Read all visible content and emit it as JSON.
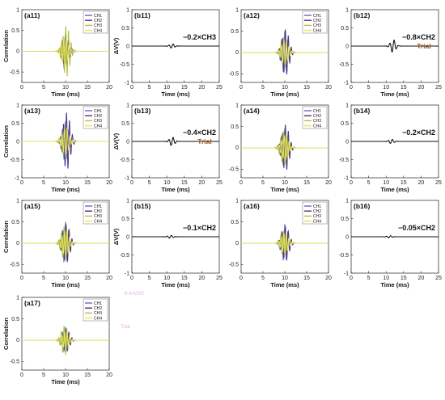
{
  "figure": {
    "legend_colors": {
      "CH1": "#5b6cc4",
      "CH2": "#4b2f7f",
      "CH3": "#b6bf3a",
      "CH4": "#e6e65a"
    },
    "faint_overlay": [
      "-0.4×CH2",
      "Trial"
    ]
  },
  "chart_data": [
    {
      "id": "a11",
      "type": "line",
      "label": "(a11)",
      "xlabel": "Time (ms)",
      "ylabel": "Correlation",
      "xlim": [
        0,
        20
      ],
      "ylim": [
        -0.75,
        1
      ],
      "xticks": [
        "0",
        "5",
        "10",
        "15",
        "20"
      ],
      "yticks": [
        "1",
        "0.5",
        "0",
        "-0.5"
      ],
      "legend": [
        "CH1",
        "CH2",
        "CH3",
        "CH4"
      ],
      "series": [
        {
          "name": "CH1",
          "center": 10,
          "amplitude": 0.45
        },
        {
          "name": "CH2",
          "center": 10,
          "amplitude": 0.35
        },
        {
          "name": "CH3",
          "center": 10.2,
          "amplitude": 0.62
        },
        {
          "name": "CH4",
          "center": 9.8,
          "amplitude": 0.35
        }
      ]
    },
    {
      "id": "b11",
      "type": "line",
      "label": "(b11)",
      "xlabel": "Time (ms)",
      "ylabel": "ΔV(V)",
      "xlim": [
        0,
        25
      ],
      "ylim": [
        -1,
        1
      ],
      "xticks": [
        "0",
        "5",
        "10",
        "15",
        "20",
        "25"
      ],
      "yticks": [
        "1",
        "0.5",
        "0",
        "-0.5",
        "-1"
      ],
      "annotation": "−0.2×CH3",
      "series": [
        {
          "name": "ΔV",
          "center": 11.5,
          "amplitude": 0.06
        }
      ]
    },
    {
      "id": "a12",
      "type": "line",
      "label": "(a12)",
      "xlabel": "Time (ms)",
      "ylabel": "",
      "xlim": [
        0,
        20
      ],
      "ylim": [
        -0.7,
        1
      ],
      "xticks": [
        "0",
        "5",
        "10",
        "15",
        "20"
      ],
      "yticks": [
        "1",
        "0.5",
        "0",
        "-0.5"
      ],
      "legend": [
        "CH1",
        "CH2",
        "CH3",
        "CH4"
      ],
      "series": [
        {
          "name": "CH1",
          "center": 10,
          "amplitude": 0.5
        },
        {
          "name": "CH2",
          "center": 10.2,
          "amplitude": 0.55
        },
        {
          "name": "CH3",
          "center": 9.9,
          "amplitude": 0.35
        },
        {
          "name": "CH4",
          "center": 10,
          "amplitude": 0.3
        }
      ]
    },
    {
      "id": "b12",
      "type": "line",
      "label": "(b12)",
      "xlabel": "Time (ms)",
      "ylabel": "",
      "xlim": [
        0,
        25
      ],
      "ylim": [
        -1,
        1
      ],
      "xticks": [
        "0",
        "5",
        "10",
        "15",
        "20",
        "25"
      ],
      "yticks": [
        "1",
        "0.5",
        "0",
        "-0.5",
        "-1"
      ],
      "annotation": "−0.8×CH2",
      "trial": "Trial",
      "series": [
        {
          "name": "ΔV",
          "center": 12,
          "amplitude": 0.18
        }
      ]
    },
    {
      "id": "a13",
      "type": "line",
      "label": "(a13)",
      "xlabel": "Time (ms)",
      "ylabel": "Correlation",
      "xlim": [
        0,
        20
      ],
      "ylim": [
        -1,
        1
      ],
      "xticks": [
        "0",
        "5",
        "10",
        "15",
        "20"
      ],
      "yticks": [
        "1",
        "0.5",
        "0",
        "-0.5",
        "-1"
      ],
      "legend": [
        "CH1",
        "CH2",
        "CH3",
        "CH4"
      ],
      "series": [
        {
          "name": "CH1",
          "center": 10,
          "amplitude": 0.55
        },
        {
          "name": "CH2",
          "center": 10.3,
          "amplitude": 0.8
        },
        {
          "name": "CH3",
          "center": 9.9,
          "amplitude": 0.45
        },
        {
          "name": "CH4",
          "center": 10,
          "amplitude": 0.35
        }
      ]
    },
    {
      "id": "b13",
      "type": "line",
      "label": "(b13)",
      "xlabel": "Time (ms)",
      "ylabel": "ΔV(V)",
      "xlim": [
        0,
        25
      ],
      "ylim": [
        -1,
        1
      ],
      "xticks": [
        "0",
        "5",
        "10",
        "15",
        "20",
        "25"
      ],
      "yticks": [
        "1",
        "0.5",
        "0",
        "-0.5",
        "-1"
      ],
      "annotation": "−0.4×CH2",
      "trial": "Trial",
      "series": [
        {
          "name": "ΔV",
          "center": 11.5,
          "amplitude": 0.12
        }
      ]
    },
    {
      "id": "a14",
      "type": "line",
      "label": "(a14)",
      "xlabel": "Time (ms)",
      "ylabel": "",
      "xlim": [
        0,
        20
      ],
      "ylim": [
        -0.7,
        1
      ],
      "xticks": [
        "0",
        "5",
        "10",
        "15",
        "20"
      ],
      "yticks": [
        "1",
        "0.5",
        "0",
        "-0.5"
      ],
      "legend": [
        "CH1",
        "CH2",
        "CH3",
        "CH4"
      ],
      "series": [
        {
          "name": "CH1",
          "center": 10,
          "amplitude": 0.45
        },
        {
          "name": "CH2",
          "center": 10.2,
          "amplitude": 0.55
        },
        {
          "name": "CH3",
          "center": 9.8,
          "amplitude": 0.4
        },
        {
          "name": "CH4",
          "center": 10.1,
          "amplitude": 0.3
        }
      ]
    },
    {
      "id": "b14",
      "type": "line",
      "label": "(b14)",
      "xlabel": "Time (ms)",
      "ylabel": "",
      "xlim": [
        0,
        25
      ],
      "ylim": [
        -1,
        1
      ],
      "xticks": [
        "0",
        "5",
        "10",
        "15",
        "20",
        "25"
      ],
      "yticks": [
        "1",
        "0.5",
        "0",
        "-0.5",
        "-1"
      ],
      "annotation": "−0.2×CH2",
      "series": [
        {
          "name": "ΔV",
          "center": 11.5,
          "amplitude": 0.06
        }
      ]
    },
    {
      "id": "a15",
      "type": "line",
      "label": "(a15)",
      "xlabel": "Time (ms)",
      "ylabel": "Correlation",
      "xlim": [
        0,
        20
      ],
      "ylim": [
        -0.7,
        1
      ],
      "xticks": [
        "0",
        "5",
        "10",
        "15",
        "20"
      ],
      "yticks": [
        "1",
        "0.5",
        "0",
        "-0.5"
      ],
      "legend": [
        "CH1",
        "CH2",
        "CH3",
        "CH4"
      ],
      "series": [
        {
          "name": "CH1",
          "center": 10,
          "amplitude": 0.5
        },
        {
          "name": "CH2",
          "center": 10.2,
          "amplitude": 0.45
        },
        {
          "name": "CH3",
          "center": 9.8,
          "amplitude": 0.4
        },
        {
          "name": "CH4",
          "center": 10,
          "amplitude": 0.3
        }
      ]
    },
    {
      "id": "b15",
      "type": "line",
      "label": "(b15)",
      "xlabel": "Time (ms)",
      "ylabel": "ΔV(V)",
      "xlim": [
        0,
        25
      ],
      "ylim": [
        -1,
        1
      ],
      "xticks": [
        "0",
        "5",
        "10",
        "15",
        "20",
        "25"
      ],
      "yticks": [
        "1",
        "0.5",
        "0",
        "-0.5",
        "-1"
      ],
      "annotation": "−0.1×CH2",
      "series": [
        {
          "name": "ΔV",
          "center": 11,
          "amplitude": 0.04
        }
      ]
    },
    {
      "id": "a16",
      "type": "line",
      "label": "(a16)",
      "xlabel": "Time (ms)",
      "ylabel": "",
      "xlim": [
        0,
        20
      ],
      "ylim": [
        -0.7,
        1
      ],
      "xticks": [
        "0",
        "5",
        "10",
        "15",
        "20"
      ],
      "yticks": [
        "1",
        "0.5",
        "0",
        "-0.5"
      ],
      "legend": [
        "CH1",
        "CH2",
        "CH3",
        "CH4"
      ],
      "series": [
        {
          "name": "CH1",
          "center": 10,
          "amplitude": 0.45
        },
        {
          "name": "CH2",
          "center": 10.2,
          "amplitude": 0.4
        },
        {
          "name": "CH3",
          "center": 9.8,
          "amplitude": 0.3
        },
        {
          "name": "CH4",
          "center": 10,
          "amplitude": 0.25
        }
      ]
    },
    {
      "id": "b16",
      "type": "line",
      "label": "(b16)",
      "xlabel": "Time (ms)",
      "ylabel": "",
      "xlim": [
        0,
        25
      ],
      "ylim": [
        -1,
        1
      ],
      "xticks": [
        "0",
        "5",
        "10",
        "15",
        "20",
        "25"
      ],
      "yticks": [
        "1",
        "0.5",
        "0",
        "-0.5",
        "-1"
      ],
      "annotation": "−0.05×CH2",
      "series": [
        {
          "name": "ΔV",
          "center": 11,
          "amplitude": 0.03
        }
      ]
    },
    {
      "id": "a17",
      "type": "line",
      "label": "(a17)",
      "xlabel": "Time (ms)",
      "ylabel": "Correlation",
      "xlim": [
        0,
        20
      ],
      "ylim": [
        -0.7,
        1
      ],
      "xticks": [
        "0",
        "5",
        "10",
        "15",
        "20"
      ],
      "yticks": [
        "1",
        "0.5",
        "0",
        "-0.5"
      ],
      "legend": [
        "CH1",
        "CH2",
        "CH3",
        "CH4"
      ],
      "series": [
        {
          "name": "CH1",
          "center": 10,
          "amplitude": 0.3
        },
        {
          "name": "CH2",
          "center": 10.2,
          "amplitude": 0.25
        },
        {
          "name": "CH3",
          "center": 9.8,
          "amplitude": 0.35
        },
        {
          "name": "CH4",
          "center": 10,
          "amplitude": 0.2
        }
      ]
    }
  ]
}
